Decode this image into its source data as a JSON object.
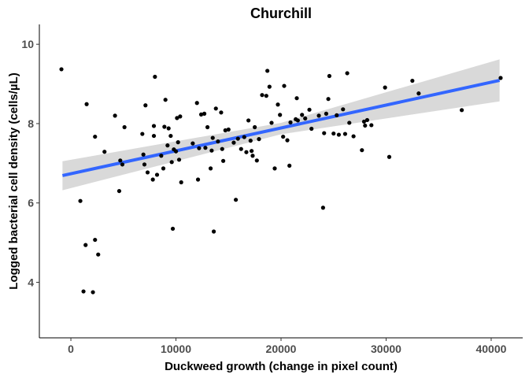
{
  "chart_data": {
    "type": "scatter",
    "title": "Churchill",
    "xlabel": "Duckweed growth (change in pixel count)",
    "ylabel": "Logged bacterial cell density (cells/µL)",
    "xlim": [
      -3000,
      43000
    ],
    "ylim": [
      2.6,
      10.5
    ],
    "x_ticks": [
      0,
      10000,
      20000,
      30000,
      40000
    ],
    "x_tick_labels": [
      "0",
      "10000",
      "20000",
      "30000",
      "40000"
    ],
    "y_ticks": [
      4,
      6,
      8,
      10
    ],
    "y_tick_labels": [
      "4",
      "6",
      "8",
      "10"
    ],
    "grid": false,
    "legend": "none",
    "colors": {
      "points": "#000000",
      "fit_line": "#3366FF",
      "confidence_band": "#d9d9d9"
    },
    "trend_line": {
      "method": "linear",
      "x": [
        -800,
        40800
      ],
      "y": [
        6.69,
        9.09
      ]
    },
    "confidence_band": {
      "x": [
        -800,
        20000,
        40800
      ],
      "lower": [
        6.32,
        7.73,
        8.56
      ],
      "upper": [
        7.05,
        8.02,
        9.62
      ]
    },
    "points": [
      {
        "x": -900,
        "y": 9.37
      },
      {
        "x": 900,
        "y": 6.05
      },
      {
        "x": 1200,
        "y": 3.77
      },
      {
        "x": 1400,
        "y": 4.94
      },
      {
        "x": 1500,
        "y": 8.49
      },
      {
        "x": 2100,
        "y": 3.75
      },
      {
        "x": 2300,
        "y": 7.67
      },
      {
        "x": 2300,
        "y": 5.07
      },
      {
        "x": 2600,
        "y": 4.7
      },
      {
        "x": 3200,
        "y": 7.29
      },
      {
        "x": 4200,
        "y": 8.2
      },
      {
        "x": 4600,
        "y": 6.3
      },
      {
        "x": 4700,
        "y": 7.07
      },
      {
        "x": 4900,
        "y": 6.97
      },
      {
        "x": 5100,
        "y": 7.91
      },
      {
        "x": 6800,
        "y": 7.74
      },
      {
        "x": 6900,
        "y": 7.22
      },
      {
        "x": 7000,
        "y": 6.97
      },
      {
        "x": 7100,
        "y": 8.46
      },
      {
        "x": 7300,
        "y": 6.77
      },
      {
        "x": 7800,
        "y": 6.59
      },
      {
        "x": 7900,
        "y": 7.94
      },
      {
        "x": 7900,
        "y": 7.69
      },
      {
        "x": 8000,
        "y": 9.18
      },
      {
        "x": 8200,
        "y": 6.71
      },
      {
        "x": 8600,
        "y": 7.19
      },
      {
        "x": 8800,
        "y": 6.87
      },
      {
        "x": 8900,
        "y": 7.92
      },
      {
        "x": 9000,
        "y": 8.6
      },
      {
        "x": 9200,
        "y": 7.45
      },
      {
        "x": 9300,
        "y": 7.88
      },
      {
        "x": 9500,
        "y": 7.69
      },
      {
        "x": 9600,
        "y": 7.03
      },
      {
        "x": 9700,
        "y": 5.35
      },
      {
        "x": 9800,
        "y": 7.35
      },
      {
        "x": 10000,
        "y": 7.3
      },
      {
        "x": 10100,
        "y": 8.14
      },
      {
        "x": 10200,
        "y": 7.53
      },
      {
        "x": 10300,
        "y": 7.09
      },
      {
        "x": 10400,
        "y": 8.18
      },
      {
        "x": 10500,
        "y": 6.52
      },
      {
        "x": 11600,
        "y": 7.5
      },
      {
        "x": 12000,
        "y": 8.52
      },
      {
        "x": 12100,
        "y": 6.59
      },
      {
        "x": 12200,
        "y": 7.38
      },
      {
        "x": 12400,
        "y": 8.23
      },
      {
        "x": 12700,
        "y": 8.25
      },
      {
        "x": 12800,
        "y": 7.39
      },
      {
        "x": 13000,
        "y": 7.91
      },
      {
        "x": 13300,
        "y": 6.87
      },
      {
        "x": 13400,
        "y": 7.32
      },
      {
        "x": 13500,
        "y": 7.64
      },
      {
        "x": 13600,
        "y": 5.28
      },
      {
        "x": 13800,
        "y": 8.38
      },
      {
        "x": 14000,
        "y": 7.55
      },
      {
        "x": 14300,
        "y": 8.28
      },
      {
        "x": 14400,
        "y": 7.36
      },
      {
        "x": 14500,
        "y": 7.06
      },
      {
        "x": 14700,
        "y": 7.83
      },
      {
        "x": 15000,
        "y": 7.85
      },
      {
        "x": 15500,
        "y": 7.52
      },
      {
        "x": 15700,
        "y": 6.08
      },
      {
        "x": 15900,
        "y": 7.62
      },
      {
        "x": 16200,
        "y": 7.36
      },
      {
        "x": 16500,
        "y": 7.66
      },
      {
        "x": 16700,
        "y": 7.28
      },
      {
        "x": 16900,
        "y": 8.08
      },
      {
        "x": 17100,
        "y": 7.57
      },
      {
        "x": 17200,
        "y": 7.31
      },
      {
        "x": 17300,
        "y": 7.19
      },
      {
        "x": 17500,
        "y": 7.91
      },
      {
        "x": 17700,
        "y": 7.07
      },
      {
        "x": 17900,
        "y": 7.61
      },
      {
        "x": 18200,
        "y": 8.72
      },
      {
        "x": 18600,
        "y": 8.7
      },
      {
        "x": 18700,
        "y": 9.33
      },
      {
        "x": 18900,
        "y": 8.93
      },
      {
        "x": 19100,
        "y": 8.02
      },
      {
        "x": 19400,
        "y": 6.87
      },
      {
        "x": 19700,
        "y": 8.48
      },
      {
        "x": 19900,
        "y": 8.22
      },
      {
        "x": 20200,
        "y": 7.67
      },
      {
        "x": 20300,
        "y": 8.95
      },
      {
        "x": 20600,
        "y": 7.58
      },
      {
        "x": 20800,
        "y": 6.94
      },
      {
        "x": 20900,
        "y": 8.03
      },
      {
        "x": 21400,
        "y": 8.11
      },
      {
        "x": 21500,
        "y": 8.64
      },
      {
        "x": 21600,
        "y": 8.08
      },
      {
        "x": 22000,
        "y": 8.22
      },
      {
        "x": 22300,
        "y": 8.13
      },
      {
        "x": 22700,
        "y": 8.35
      },
      {
        "x": 22900,
        "y": 7.87
      },
      {
        "x": 23600,
        "y": 8.2
      },
      {
        "x": 24000,
        "y": 5.88
      },
      {
        "x": 24100,
        "y": 7.76
      },
      {
        "x": 24300,
        "y": 8.25
      },
      {
        "x": 24500,
        "y": 8.62
      },
      {
        "x": 24600,
        "y": 9.2
      },
      {
        "x": 25000,
        "y": 7.75
      },
      {
        "x": 25300,
        "y": 8.21
      },
      {
        "x": 25500,
        "y": 7.72
      },
      {
        "x": 25900,
        "y": 8.36
      },
      {
        "x": 26100,
        "y": 7.74
      },
      {
        "x": 26300,
        "y": 9.27
      },
      {
        "x": 26500,
        "y": 8.02
      },
      {
        "x": 26900,
        "y": 7.68
      },
      {
        "x": 27700,
        "y": 7.33
      },
      {
        "x": 27900,
        "y": 8.05
      },
      {
        "x": 28000,
        "y": 7.95
      },
      {
        "x": 28200,
        "y": 8.09
      },
      {
        "x": 28600,
        "y": 7.96
      },
      {
        "x": 29900,
        "y": 8.91
      },
      {
        "x": 30300,
        "y": 7.16
      },
      {
        "x": 32500,
        "y": 9.08
      },
      {
        "x": 33100,
        "y": 8.76
      },
      {
        "x": 37200,
        "y": 8.34
      },
      {
        "x": 40900,
        "y": 9.15
      }
    ]
  }
}
